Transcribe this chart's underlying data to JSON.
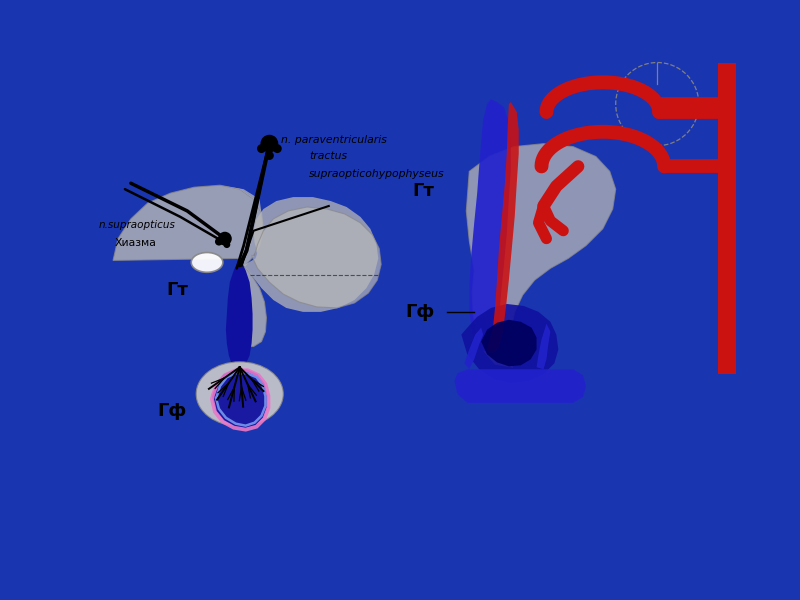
{
  "bg_outer_color": "#1a35b0",
  "bg_slide_color": "#f0f0ec",
  "color_blue_dark": "#1010a0",
  "color_blue_med": "#2222cc",
  "color_red": "#cc1111",
  "color_pink": "#e878c8",
  "color_lightblue": "#7799ee",
  "color_gray_ht": "#b8b8b8",
  "color_gray_dark": "#888888",
  "color_black": "#111111",
  "color_darknavy": "#000060",
  "color_white": "#ffffff",
  "label_n_para": "n. paraventricularis",
  "label_tractus1": "tractus",
  "label_tractus2": "supraopticohypophyseus",
  "label_supraopt": "n.supraopticus",
  "label_chiasma": "Хиазма",
  "label_gt_left": "Гт",
  "label_gf_left": "Гф",
  "label_gt_right": "Гт",
  "label_gf_right": "Гф"
}
